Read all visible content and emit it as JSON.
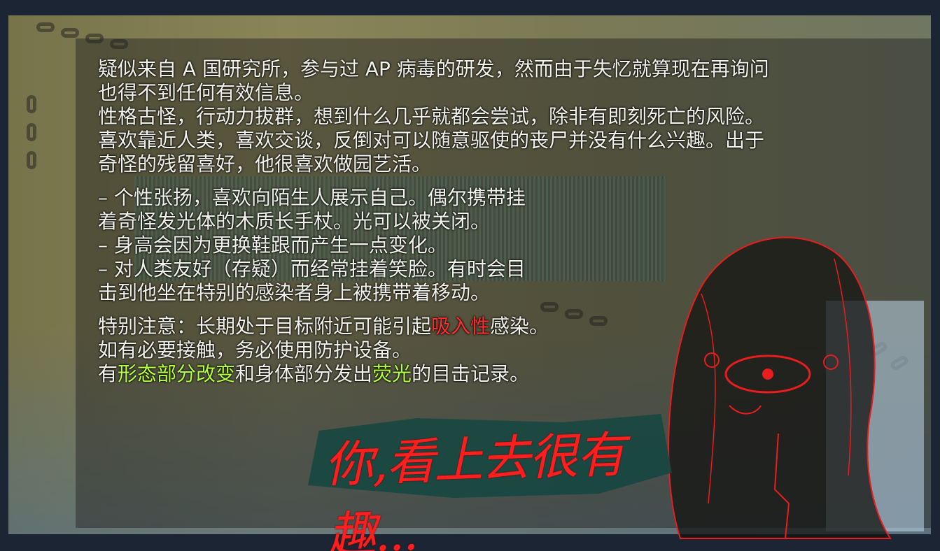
{
  "description": {
    "lines": [
      "疑似来自 A 国研究所，参与过 AP 病毒的研发，然而由于失忆就算现在再询问",
      "也得不到任何有效信息。",
      "性格古怪，行动力拔群，想到什么几乎就都会尝试，除非有即刻死亡的风险。",
      "喜欢靠近人类，喜欢交谈，反倒对可以随意驱使的丧尸并没有什么兴趣。出于",
      "奇怪的残留喜好，他很喜欢做园艺活。"
    ]
  },
  "traits": {
    "lines": [
      " – 个性张扬，喜欢向陌生人展示自己。偶尔携带挂",
      "着奇怪发光体的木质长手杖。光可以被关闭。",
      "– 身高会因为更换鞋跟而产生一点变化。",
      "– 对人类友好（存疑）而经常挂着笑脸。有时会目",
      "击到他坐在特别的感染者身上被携带着移动。"
    ]
  },
  "notice": {
    "line1_a": "特别注意：长期处于目标附近可能引起",
    "line1_red": "吸入性",
    "line1_b": "感染。",
    "line2": "如有必要接触，务必使用防护设备。",
    "line3_a": "有",
    "line3_green1": "形态部分改变",
    "line3_b": "和身体部分发出",
    "line3_green2": "荧光",
    "line3_c": "的目击记录。"
  },
  "banner": {
    "text": "你,看上去很有趣..."
  },
  "colors": {
    "highlight_red": "#ff2d2d",
    "highlight_green": "#b6ff3c",
    "banner_red": "#ff1e1e"
  }
}
